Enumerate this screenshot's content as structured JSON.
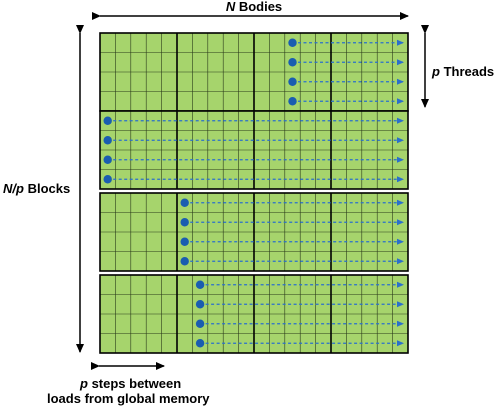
{
  "labels": {
    "n_bodies_var": "N",
    "n_bodies_text": " Bodies",
    "p_threads_var": "p",
    "p_threads_text": " Threads",
    "np_blocks_var": "N/p",
    "np_blocks_text": " Blocks",
    "steps_line1_var": "p",
    "steps_line1_text": " steps between",
    "steps_line2": "loads from global memory"
  },
  "colors": {
    "tile_fill": "#a6d46c",
    "grid_line": "#2a3a1a",
    "thread_dot": "#1a5db0",
    "thread_arrow": "#2a6fcc",
    "outline": "#000000"
  },
  "blocks": [
    {
      "thread_start_col": 12,
      "thread_rows": [
        0,
        1,
        2,
        3
      ]
    },
    {
      "thread_start_col": 0,
      "thread_rows": [
        0,
        1,
        2,
        3
      ]
    },
    {
      "thread_start_col": 5,
      "thread_rows": [
        0,
        1,
        2,
        3
      ]
    },
    {
      "thread_start_col": 6,
      "thread_rows": [
        0,
        1,
        2,
        3
      ]
    }
  ],
  "grid": {
    "tiles_per_row": 4,
    "cells_per_tile": 5,
    "rows_per_block": 4
  }
}
